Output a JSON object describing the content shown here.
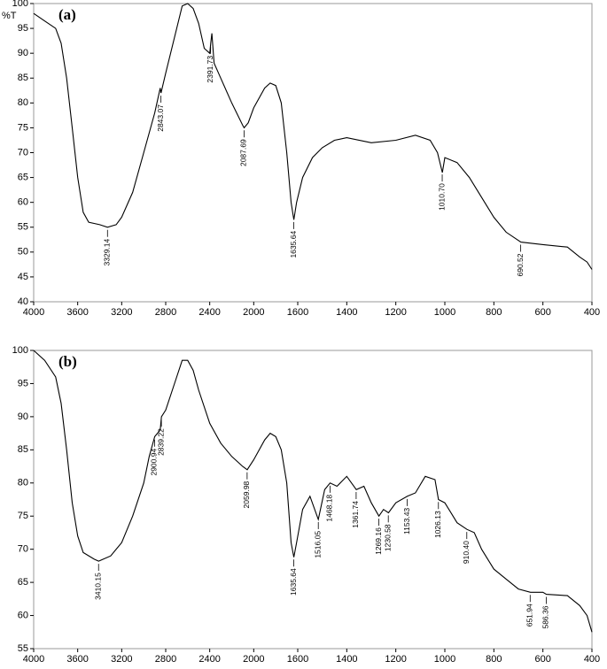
{
  "chart_data": [
    {
      "type": "line",
      "panel_label": "(a)",
      "ylabel": "%T",
      "xlim": [
        4000,
        400
      ],
      "xbreak": 1600,
      "xticks": [
        4000,
        3600,
        3200,
        2800,
        2400,
        2000,
        1600,
        1400,
        1200,
        1000,
        800,
        600,
        400
      ],
      "ylim": [
        40,
        100
      ],
      "yticks": [
        40,
        45,
        50,
        55,
        60,
        65,
        70,
        75,
        80,
        85,
        90,
        95,
        100
      ],
      "color": "#000000",
      "x": [
        4000,
        3900,
        3800,
        3750,
        3700,
        3650,
        3600,
        3550,
        3500,
        3400,
        3329,
        3250,
        3200,
        3100,
        3000,
        2900,
        2850,
        2843,
        2800,
        2700,
        2650,
        2600,
        2550,
        2500,
        2450,
        2400,
        2391,
        2380,
        2360,
        2300,
        2200,
        2100,
        2087,
        2050,
        2000,
        1900,
        1850,
        1800,
        1750,
        1700,
        1660,
        1635,
        1610,
        1580,
        1540,
        1500,
        1450,
        1400,
        1300,
        1200,
        1120,
        1060,
        1030,
        1010,
        1000,
        950,
        900,
        850,
        800,
        750,
        690,
        600,
        500,
        450,
        420,
        400
      ],
      "values": [
        98,
        96.5,
        95,
        92,
        85,
        75,
        65,
        58,
        56,
        55.5,
        55,
        55.5,
        57,
        62,
        70,
        78,
        83,
        82,
        86,
        95,
        99.5,
        100,
        99,
        96,
        91,
        90,
        92,
        94,
        88,
        85,
        80,
        75.5,
        75,
        76,
        79,
        83,
        84,
        83.5,
        80,
        70,
        60,
        56.5,
        60,
        65,
        69,
        71,
        72.5,
        73,
        72,
        72.5,
        73.5,
        72.5,
        70,
        66,
        69,
        68,
        65,
        61,
        57,
        54,
        52,
        51.5,
        51,
        49,
        48,
        46.5
      ],
      "annotations": [
        {
          "x": 3329.14,
          "label": "3329.14"
        },
        {
          "x": 2843.07,
          "label": "2843.07"
        },
        {
          "x": 2391.73,
          "label": "2391.73"
        },
        {
          "x": 2087.69,
          "label": "2087.69"
        },
        {
          "x": 1635.64,
          "label": "1635.64"
        },
        {
          "x": 1010.7,
          "label": "1010.70"
        },
        {
          "x": 690.52,
          "label": "690.52"
        }
      ]
    },
    {
      "type": "line",
      "panel_label": "(b)",
      "xlim": [
        4000,
        400
      ],
      "xbreak": 1600,
      "xticks": [
        4000,
        3600,
        3200,
        2800,
        2400,
        2000,
        1600,
        1400,
        1200,
        1000,
        800,
        600,
        400
      ],
      "ylim": [
        55,
        100
      ],
      "yticks": [
        55,
        60,
        65,
        70,
        75,
        80,
        85,
        90,
        95,
        100
      ],
      "color": "#000000",
      "x": [
        4000,
        3900,
        3800,
        3750,
        3700,
        3650,
        3600,
        3550,
        3450,
        3410,
        3300,
        3200,
        3100,
        3000,
        2950,
        2900,
        2850,
        2839,
        2800,
        2700,
        2650,
        2600,
        2550,
        2500,
        2400,
        2300,
        2200,
        2100,
        2059,
        2000,
        1900,
        1850,
        1800,
        1750,
        1700,
        1660,
        1635,
        1610,
        1580,
        1550,
        1516,
        1490,
        1468,
        1440,
        1400,
        1361,
        1330,
        1300,
        1269,
        1250,
        1230,
        1200,
        1153,
        1120,
        1080,
        1040,
        1026,
        1000,
        950,
        910,
        880,
        850,
        800,
        750,
        700,
        651,
        600,
        586,
        500,
        450,
        420,
        400
      ],
      "values": [
        100,
        98.5,
        96,
        92,
        85,
        77,
        72,
        69.5,
        68.5,
        68.2,
        69,
        71,
        75,
        80,
        84,
        87,
        88,
        90,
        91,
        96,
        98.5,
        98.5,
        97,
        94,
        89,
        86,
        84,
        82.5,
        82,
        83.5,
        86.5,
        87.5,
        87,
        85,
        80,
        71,
        68.8,
        71,
        76,
        78,
        74.5,
        79,
        80,
        79.5,
        81,
        79,
        79.5,
        77,
        75,
        76,
        75.5,
        77,
        78,
        78.5,
        81,
        80.5,
        77.5,
        77,
        74,
        73,
        72.5,
        70,
        67,
        65.5,
        64,
        63.5,
        63.5,
        63.2,
        63,
        61.5,
        60,
        57.5
      ],
      "annotations": [
        {
          "x": 3410.15,
          "label": "3410.15"
        },
        {
          "x": 2900.94,
          "label": "2900.94"
        },
        {
          "x": 2839.22,
          "label": "2839.22"
        },
        {
          "x": 2059.98,
          "label": "2059.98"
        },
        {
          "x": 1635.64,
          "label": "1635.64"
        },
        {
          "x": 1516.05,
          "label": "1516.05"
        },
        {
          "x": 1468.18,
          "label": "1468.18"
        },
        {
          "x": 1361.74,
          "label": "1361.74"
        },
        {
          "x": 1269.16,
          "label": "1269.16"
        },
        {
          "x": 1230.58,
          "label": "1230.58"
        },
        {
          "x": 1153.43,
          "label": "1153.43"
        },
        {
          "x": 1026.13,
          "label": "1026.13"
        },
        {
          "x": 910.4,
          "label": "910.40"
        },
        {
          "x": 651.94,
          "label": "651.94"
        },
        {
          "x": 586.36,
          "label": "586.36"
        }
      ]
    }
  ]
}
